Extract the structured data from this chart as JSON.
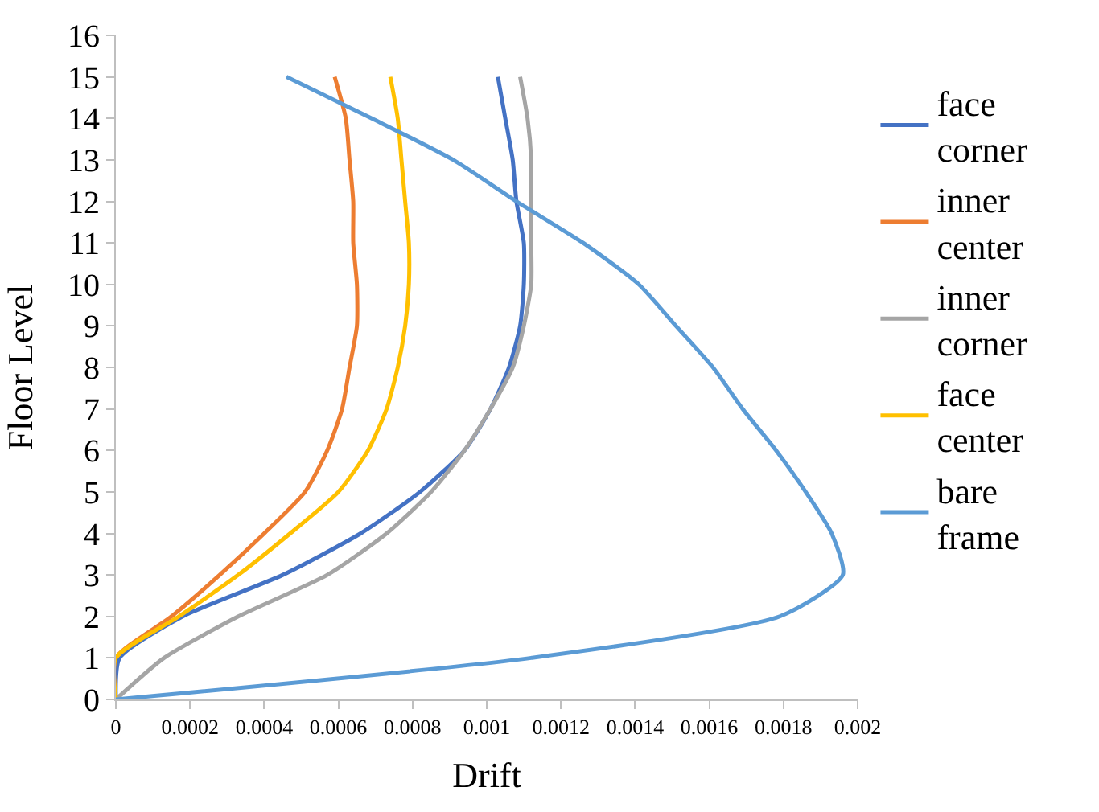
{
  "chart_data": {
    "type": "line",
    "xlabel": "Drift",
    "ylabel": "Floor Level",
    "xlim": [
      0,
      0.002
    ],
    "xticks": [
      0,
      0.0002,
      0.0004,
      0.0006,
      0.0008,
      0.001,
      0.0012,
      0.0014,
      0.0016,
      0.0018,
      0.002
    ],
    "ylim": [
      0,
      16
    ],
    "yticks": [
      0,
      1,
      2,
      3,
      4,
      5,
      6,
      7,
      8,
      9,
      10,
      11,
      12,
      13,
      14,
      15,
      16
    ],
    "legend": "right",
    "marker": "none",
    "line_style": "solid",
    "series": [
      {
        "name": "face corner",
        "color": "#4472c4",
        "x": [
          0,
          1e-05,
          0.00018,
          0.00045,
          0.00066,
          0.00082,
          0.00094,
          0.00101,
          0.00106,
          0.00109,
          0.0011,
          0.0011,
          0.00108,
          0.00107,
          0.00105,
          0.00103
        ],
        "values": [
          0,
          1,
          2,
          3,
          4,
          5,
          6,
          7,
          8,
          9,
          10,
          11,
          12,
          13,
          14,
          15
        ]
      },
      {
        "name": "inner center",
        "color": "#ed7d31",
        "x": [
          0,
          0,
          0.00015,
          0.00028,
          0.0004,
          0.00051,
          0.00057,
          0.00061,
          0.00063,
          0.00065,
          0.00065,
          0.00064,
          0.00064,
          0.00063,
          0.00062,
          0.00059
        ],
        "values": [
          0,
          1,
          2,
          3,
          4,
          5,
          6,
          7,
          8,
          9,
          10,
          11,
          12,
          13,
          14,
          15
        ]
      },
      {
        "name": "inner corner",
        "color": "#a5a5a5",
        "x": [
          0,
          0.00013,
          0.00033,
          0.00057,
          0.00073,
          0.00085,
          0.00094,
          0.00101,
          0.00107,
          0.0011,
          0.00112,
          0.00112,
          0.00112,
          0.00112,
          0.00111,
          0.00109
        ],
        "values": [
          0,
          1,
          2,
          3,
          4,
          5,
          6,
          7,
          8,
          9,
          10,
          11,
          12,
          13,
          14,
          15
        ]
      },
      {
        "name": "face center",
        "color": "#ffc000",
        "x": [
          0,
          0,
          0.00017,
          0.00033,
          0.00047,
          0.0006,
          0.00068,
          0.00073,
          0.00076,
          0.00078,
          0.00079,
          0.00079,
          0.00078,
          0.00077,
          0.00076,
          0.00074
        ],
        "values": [
          0,
          1,
          2,
          3,
          4,
          5,
          6,
          7,
          8,
          9,
          10,
          11,
          12,
          13,
          14,
          15
        ]
      },
      {
        "name": "bare frame",
        "color": "#5b9bd5",
        "x": [
          0,
          0.00112,
          0.00179,
          0.00196,
          0.00193,
          0.00186,
          0.00178,
          0.00169,
          0.00161,
          0.00151,
          0.00141,
          0.00126,
          0.00108,
          0.00091,
          0.00069,
          0.00046
        ],
        "values": [
          0,
          1,
          2,
          3,
          4,
          5,
          6,
          7,
          8,
          9,
          10,
          11,
          12,
          13,
          14,
          15
        ]
      }
    ]
  }
}
